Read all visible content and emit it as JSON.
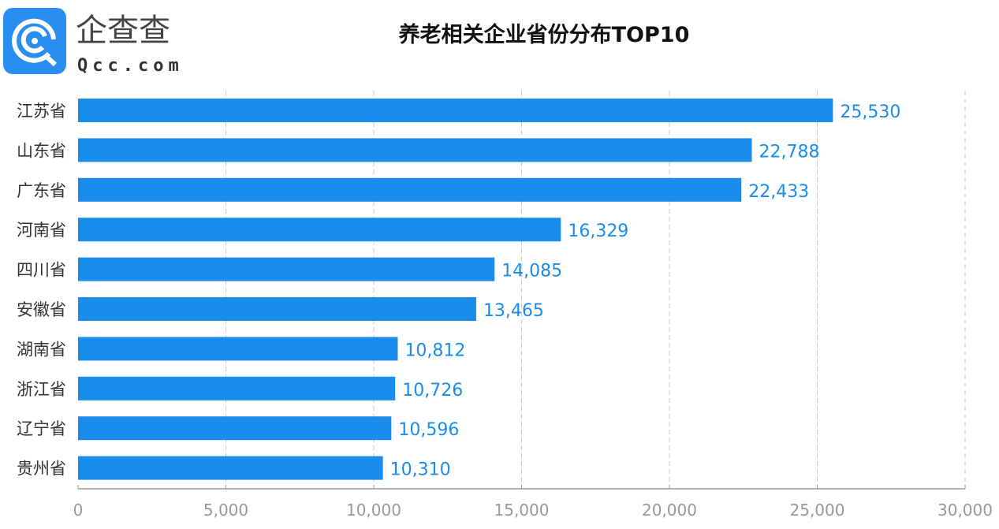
{
  "logo": {
    "name": "企查查",
    "domain": "Qcc.com"
  },
  "colors": {
    "bar": "#1a8ceb",
    "label": "#1a8ceb",
    "axis": "#999999",
    "grid": "#c8c8c8",
    "logo": "#2a8ef0"
  },
  "chart_data": {
    "type": "bar",
    "orientation": "horizontal",
    "title": "养老相关企业省份分布TOP10",
    "categories": [
      "江苏省",
      "山东省",
      "广东省",
      "河南省",
      "四川省",
      "安徽省",
      "湖南省",
      "浙江省",
      "辽宁省",
      "贵州省"
    ],
    "values": [
      25530,
      22788,
      22433,
      16329,
      14085,
      13465,
      10812,
      10726,
      10596,
      10310
    ],
    "value_labels": [
      "25,530",
      "22,788",
      "22,433",
      "16,329",
      "14,085",
      "13,465",
      "10,812",
      "10,726",
      "10,596",
      "10,310"
    ],
    "xlim": [
      0,
      30000
    ],
    "xticks": [
      0,
      5000,
      10000,
      15000,
      20000,
      25000,
      30000
    ],
    "xtick_labels": [
      "0",
      "5,000",
      "10,000",
      "15,000",
      "20,000",
      "25,000",
      "30,000"
    ],
    "grid": "vertical dashed",
    "xlabel": "",
    "ylabel": ""
  }
}
